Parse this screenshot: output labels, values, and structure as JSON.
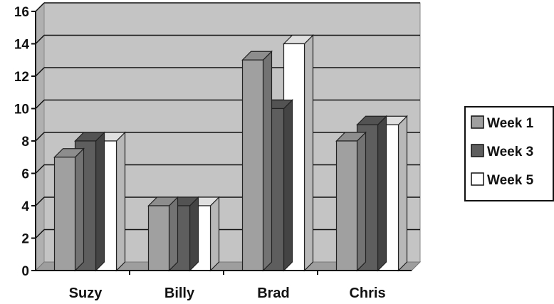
{
  "chart_data": {
    "type": "bar",
    "style": "3d-clustered-column",
    "categories": [
      "Suzy",
      "Billy",
      "Brad",
      "Chris"
    ],
    "series": [
      {
        "name": "Week 1",
        "values": [
          7,
          4,
          13,
          8
        ],
        "color": "#a0a0a0"
      },
      {
        "name": "Week 3",
        "values": [
          8,
          4,
          10,
          9
        ],
        "color": "#5e5e5e"
      },
      {
        "name": "Week 5",
        "values": [
          8,
          4,
          14,
          9
        ],
        "color": "#ffffff"
      }
    ],
    "ylim": [
      0,
      16
    ],
    "yticks": [
      0,
      2,
      4,
      6,
      8,
      10,
      12,
      14,
      16
    ],
    "grid": true,
    "legend": "right",
    "title": "",
    "xlabel": "",
    "ylabel": "",
    "colors": {
      "background": "#c4c4c4",
      "floor": "#9e9e9e",
      "gridline": "#111111"
    }
  }
}
